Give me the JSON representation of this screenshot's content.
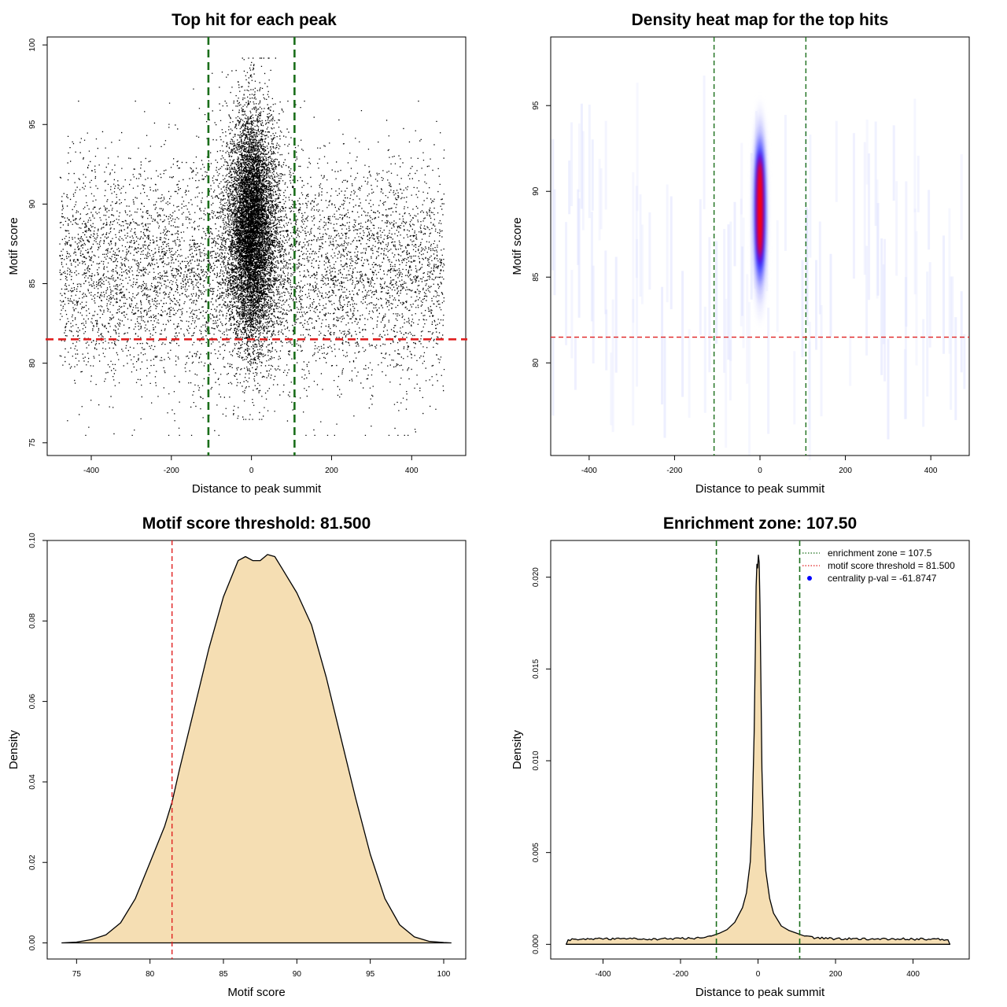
{
  "chart_data": [
    {
      "id": "p1",
      "type": "scatter",
      "title": "Top hit for each peak",
      "xlabel": "Distance to peak summit",
      "ylabel": "Motif score",
      "xlim": [
        -510,
        535
      ],
      "ylim": [
        74.2,
        100.5
      ],
      "xticks": [
        -400,
        -200,
        0,
        200,
        400
      ],
      "yticks": [
        75,
        80,
        85,
        90,
        95,
        100
      ],
      "x_tick_labels": [
        "-400",
        "-200",
        "0",
        "200",
        "400"
      ],
      "y_tick_labels": [
        "75",
        "80",
        "85",
        "90",
        "95",
        "100"
      ],
      "background_points": {
        "x_range": [
          -480,
          480
        ],
        "y_mean": 85.8,
        "y_sd": 3.4,
        "count": 6500
      },
      "central_points": {
        "x_mean": 0,
        "x_sd": 20,
        "y_mean": 88.5,
        "y_sd": 3.6,
        "count": 9000
      },
      "vlines": [
        -107.5,
        107.5
      ],
      "vline_color": "#1a6e1a",
      "hline": 81.5,
      "hline_color": "#e02020",
      "point_color": "#000000"
    },
    {
      "id": "p2",
      "type": "heatmap",
      "title": "Density heat map for the top hits",
      "xlabel": "Distance to peak summit",
      "ylabel": "Motif score",
      "xlim": [
        -490,
        490
      ],
      "ylim": [
        74.6,
        99.0
      ],
      "xticks": [
        -400,
        -200,
        0,
        200,
        400
      ],
      "yticks": [
        80,
        85,
        90,
        95
      ],
      "x_tick_labels": [
        "-400",
        "-200",
        "0",
        "200",
        "400"
      ],
      "y_tick_labels": [
        "80",
        "85",
        "90",
        "95"
      ],
      "peak": {
        "x": 0,
        "y": 89,
        "x_sd": 5,
        "y_sd": 3.2
      },
      "vlines": [
        -107.5,
        107.5
      ],
      "vline_color": "#1a6e1a",
      "hline": 81.5,
      "hline_color": "#e02020",
      "color_scale": [
        "#ffffff",
        "#0000ff",
        "#ff0000"
      ]
    },
    {
      "id": "p3",
      "type": "area",
      "title": "Motif score threshold: 81.500",
      "xlabel": "Motif score",
      "ylabel": "Density",
      "xlim": [
        73.0,
        101.5
      ],
      "ylim": [
        -0.004,
        0.1
      ],
      "xticks": [
        75,
        80,
        85,
        90,
        95,
        100
      ],
      "yticks": [
        0.0,
        0.02,
        0.04,
        0.06,
        0.08,
        0.1
      ],
      "x_tick_labels": [
        "75",
        "80",
        "85",
        "90",
        "95",
        "100"
      ],
      "y_tick_labels": [
        "0.00",
        "0.02",
        "0.04",
        "0.06",
        "0.08",
        "0.10"
      ],
      "x": [
        74,
        75,
        76,
        77,
        78,
        79,
        80,
        81,
        81.5,
        82,
        83,
        84,
        85,
        86,
        86.5,
        87,
        87.5,
        88,
        88.5,
        89,
        90,
        91,
        92,
        93,
        94,
        95,
        96,
        97,
        98,
        99,
        100,
        100.5
      ],
      "y": [
        0.0,
        0.0002,
        0.0008,
        0.002,
        0.005,
        0.011,
        0.02,
        0.029,
        0.035,
        0.043,
        0.058,
        0.073,
        0.086,
        0.095,
        0.096,
        0.095,
        0.095,
        0.0965,
        0.096,
        0.093,
        0.087,
        0.079,
        0.066,
        0.051,
        0.036,
        0.022,
        0.011,
        0.0045,
        0.0015,
        0.0004,
        0.0001,
        0.0
      ],
      "vline": 81.5,
      "vline_color": "#e02020",
      "fill": "#f5deb3"
    },
    {
      "id": "p4",
      "type": "area",
      "title": "Enrichment zone: 107.50",
      "xlabel": "Distance to peak summit",
      "ylabel": "Density",
      "xlim": [
        -535,
        545
      ],
      "ylim": [
        -0.0008,
        0.022
      ],
      "xticks": [
        -400,
        -200,
        0,
        200,
        400
      ],
      "yticks": [
        0.0,
        0.005,
        0.01,
        0.015,
        0.02
      ],
      "x_tick_labels": [
        "-400",
        "-200",
        "0",
        "200",
        "400"
      ],
      "y_tick_labels": [
        "0.000",
        "0.005",
        "0.010",
        "0.015",
        "0.020"
      ],
      "x": [
        -495,
        -490,
        -450,
        -400,
        -350,
        -300,
        -250,
        -200,
        -150,
        -120,
        -100,
        -80,
        -60,
        -40,
        -30,
        -20,
        -15,
        -10,
        -7,
        -5,
        -3,
        -1,
        1,
        3,
        5,
        7,
        10,
        15,
        20,
        30,
        40,
        60,
        80,
        100,
        120,
        150,
        200,
        250,
        300,
        350,
        400,
        450,
        490,
        495
      ],
      "y": [
        0.0,
        0.00025,
        0.0003,
        0.00028,
        0.00032,
        0.00027,
        0.0003,
        0.00032,
        0.00035,
        0.00045,
        0.0006,
        0.0008,
        0.0012,
        0.002,
        0.0028,
        0.0045,
        0.007,
        0.0115,
        0.016,
        0.0195,
        0.0207,
        0.0205,
        0.0212,
        0.0208,
        0.0185,
        0.015,
        0.0095,
        0.006,
        0.004,
        0.0025,
        0.0017,
        0.001,
        0.00075,
        0.0006,
        0.00045,
        0.00035,
        0.0003,
        0.00032,
        0.00027,
        0.0003,
        0.00028,
        0.0003,
        0.00025,
        0.0
      ],
      "vlines": [
        -107.5,
        107.5
      ],
      "vline_color": "#1a6e1a",
      "fill": "#f5deb3",
      "legend": {
        "position": "top-right",
        "entries": [
          {
            "label": "enrichment zone = 107.5",
            "style": "dotted-line",
            "color": "#1a6e1a"
          },
          {
            "label": "motif score threshold = 81.500",
            "style": "dotted-line",
            "color": "#e02020"
          },
          {
            "label": "centrality p-val = -61.8747",
            "style": "point",
            "color": "#0000ff"
          }
        ]
      }
    }
  ]
}
